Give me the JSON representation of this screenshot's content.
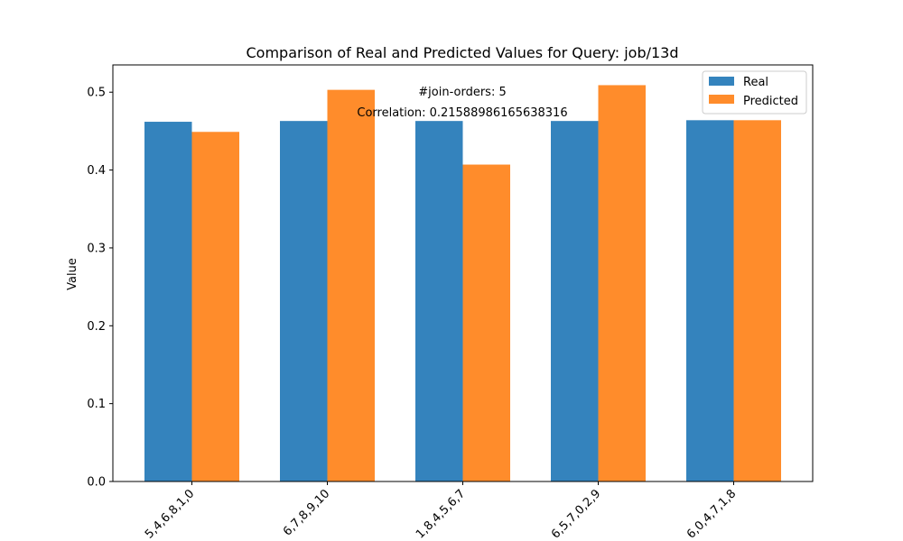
{
  "chart_data": {
    "type": "bar",
    "title": "Comparison of Real and Predicted Values for Query: job/13d",
    "xlabel": "",
    "ylabel": "Value",
    "ylim": [
      0,
      0.535
    ],
    "yticks": [
      "0.0",
      "0.1",
      "0.2",
      "0.3",
      "0.4",
      "0.5"
    ],
    "categories": [
      "5,4,6,8,1,0",
      "6,7,8,9,10",
      "1,8,4,5,6,7",
      "6,5,7,0,2,9",
      "6,0,4,7,1,8"
    ],
    "series": [
      {
        "name": "Real",
        "color": "#3483bd",
        "values": [
          0.462,
          0.463,
          0.463,
          0.463,
          0.464
        ]
      },
      {
        "name": "Predicted",
        "color": "#ff8c2b",
        "values": [
          0.449,
          0.503,
          0.407,
          0.509,
          0.464
        ]
      }
    ],
    "annotations": [
      "#join-orders: 5",
      "Correlation: 0.21588986165638316"
    ],
    "legend_position": "top-right",
    "grid": false
  }
}
